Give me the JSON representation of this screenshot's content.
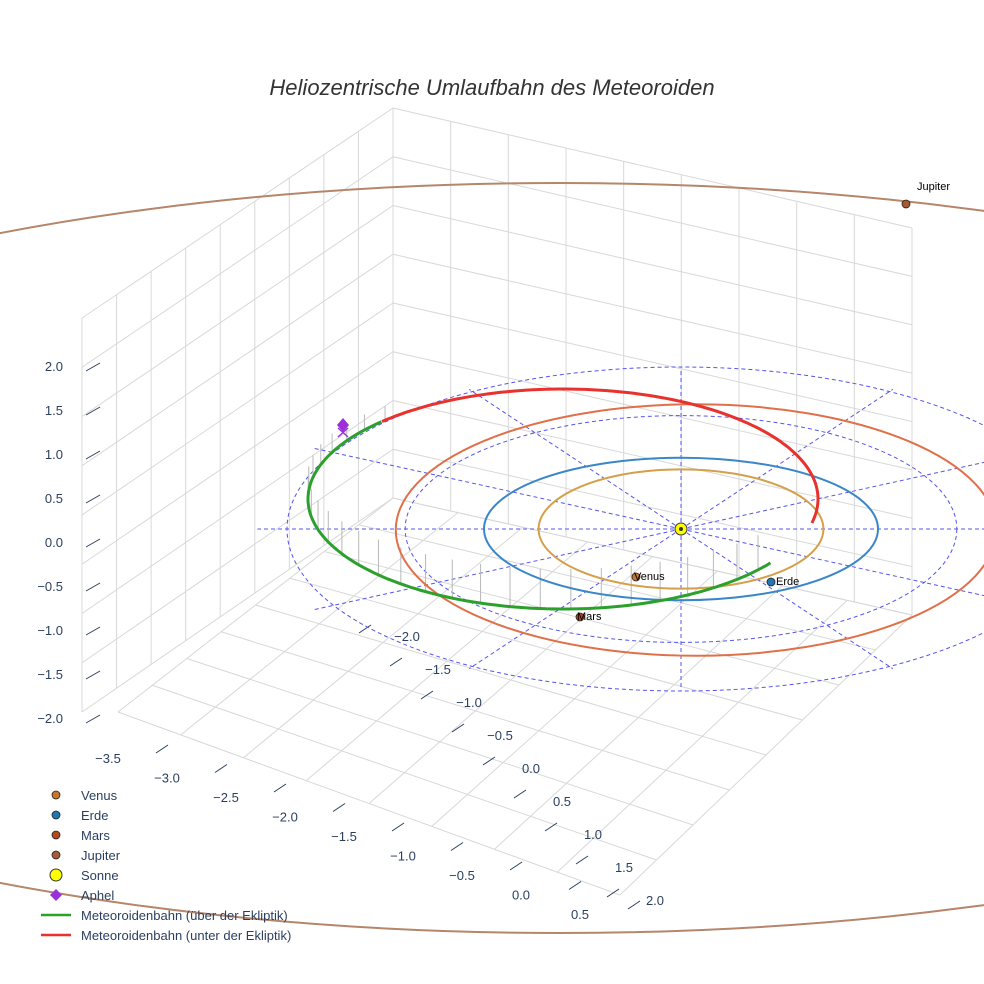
{
  "chart_data": {
    "type": "scatter3d",
    "title": "Heliozentrische Umlaufbahn des Meteoroiden",
    "axes": {
      "x": {
        "range": [
          -3.5,
          0.5
        ],
        "ticks": [
          "−3.5",
          "−3.0",
          "−2.5",
          "−2.0",
          "−1.5",
          "−1.0",
          "−0.5",
          "0.0",
          "0.5"
        ]
      },
      "y": {
        "range": [
          -2.0,
          2.0
        ],
        "ticks": [
          "−2.0",
          "−1.5",
          "−1.0",
          "−0.5",
          "0.0",
          "0.5",
          "1.0",
          "1.5",
          "2.0"
        ]
      },
      "z": {
        "range": [
          -2.0,
          2.0
        ],
        "ticks": [
          "−2.0",
          "−1.5",
          "−1.0",
          "−0.5",
          "0.0",
          "0.5",
          "1.0",
          "1.5",
          "2.0"
        ]
      }
    },
    "planets": [
      {
        "name": "Venus",
        "label": "Venus",
        "semi_major_axis_au": 0.723,
        "color": "#d4a04c",
        "marker_color": "#c9762a"
      },
      {
        "name": "Erde",
        "label": "Erde",
        "semi_major_axis_au": 1.0,
        "color": "#3a86c8",
        "marker_color": "#1f77b4"
      },
      {
        "name": "Mars",
        "label": "Mars",
        "semi_major_axis_au": 1.524,
        "color": "#e0704a",
        "marker_color": "#b5481f"
      },
      {
        "name": "Jupiter",
        "label": "Jupiter",
        "semi_major_axis_au": 5.203,
        "color": "#b5866a",
        "marker_color": "#a85a32"
      }
    ],
    "sun": {
      "name": "Sonne",
      "x": 0,
      "y": 0,
      "z": 0,
      "color": "#ffff00"
    },
    "aphel": {
      "name": "Aphel",
      "color": "#9b30d9"
    },
    "orbit_segments": [
      {
        "name": "Meteoroidenbahn (über der Ekliptik)",
        "color": "#2ca02c"
      },
      {
        "name": "Meteoroidenbahn (unter der Ekliptik)",
        "color": "#e8322e"
      }
    ],
    "legend": {
      "position": "bottom-left",
      "entries": [
        {
          "label": "Venus",
          "marker": "circle",
          "color": "#c9762a"
        },
        {
          "label": "Erde",
          "marker": "circle",
          "color": "#1f77b4"
        },
        {
          "label": "Mars",
          "marker": "circle",
          "color": "#b5481f"
        },
        {
          "label": "Jupiter",
          "marker": "circle",
          "color": "#a85a32"
        },
        {
          "label": "Sonne",
          "marker": "circle-large",
          "color": "#ffff00"
        },
        {
          "label": "Aphel",
          "marker": "diamond",
          "color": "#9b30d9"
        },
        {
          "label": "Meteoroidenbahn (über der Ekliptik)",
          "marker": "line",
          "color": "#2ca02c"
        },
        {
          "label": "Meteoroidenbahn (unter der Ekliptik)",
          "marker": "line",
          "color": "#e8322e"
        }
      ]
    },
    "ecliptic_grid": {
      "line_color": "#5555ee",
      "style": "dashed"
    }
  }
}
